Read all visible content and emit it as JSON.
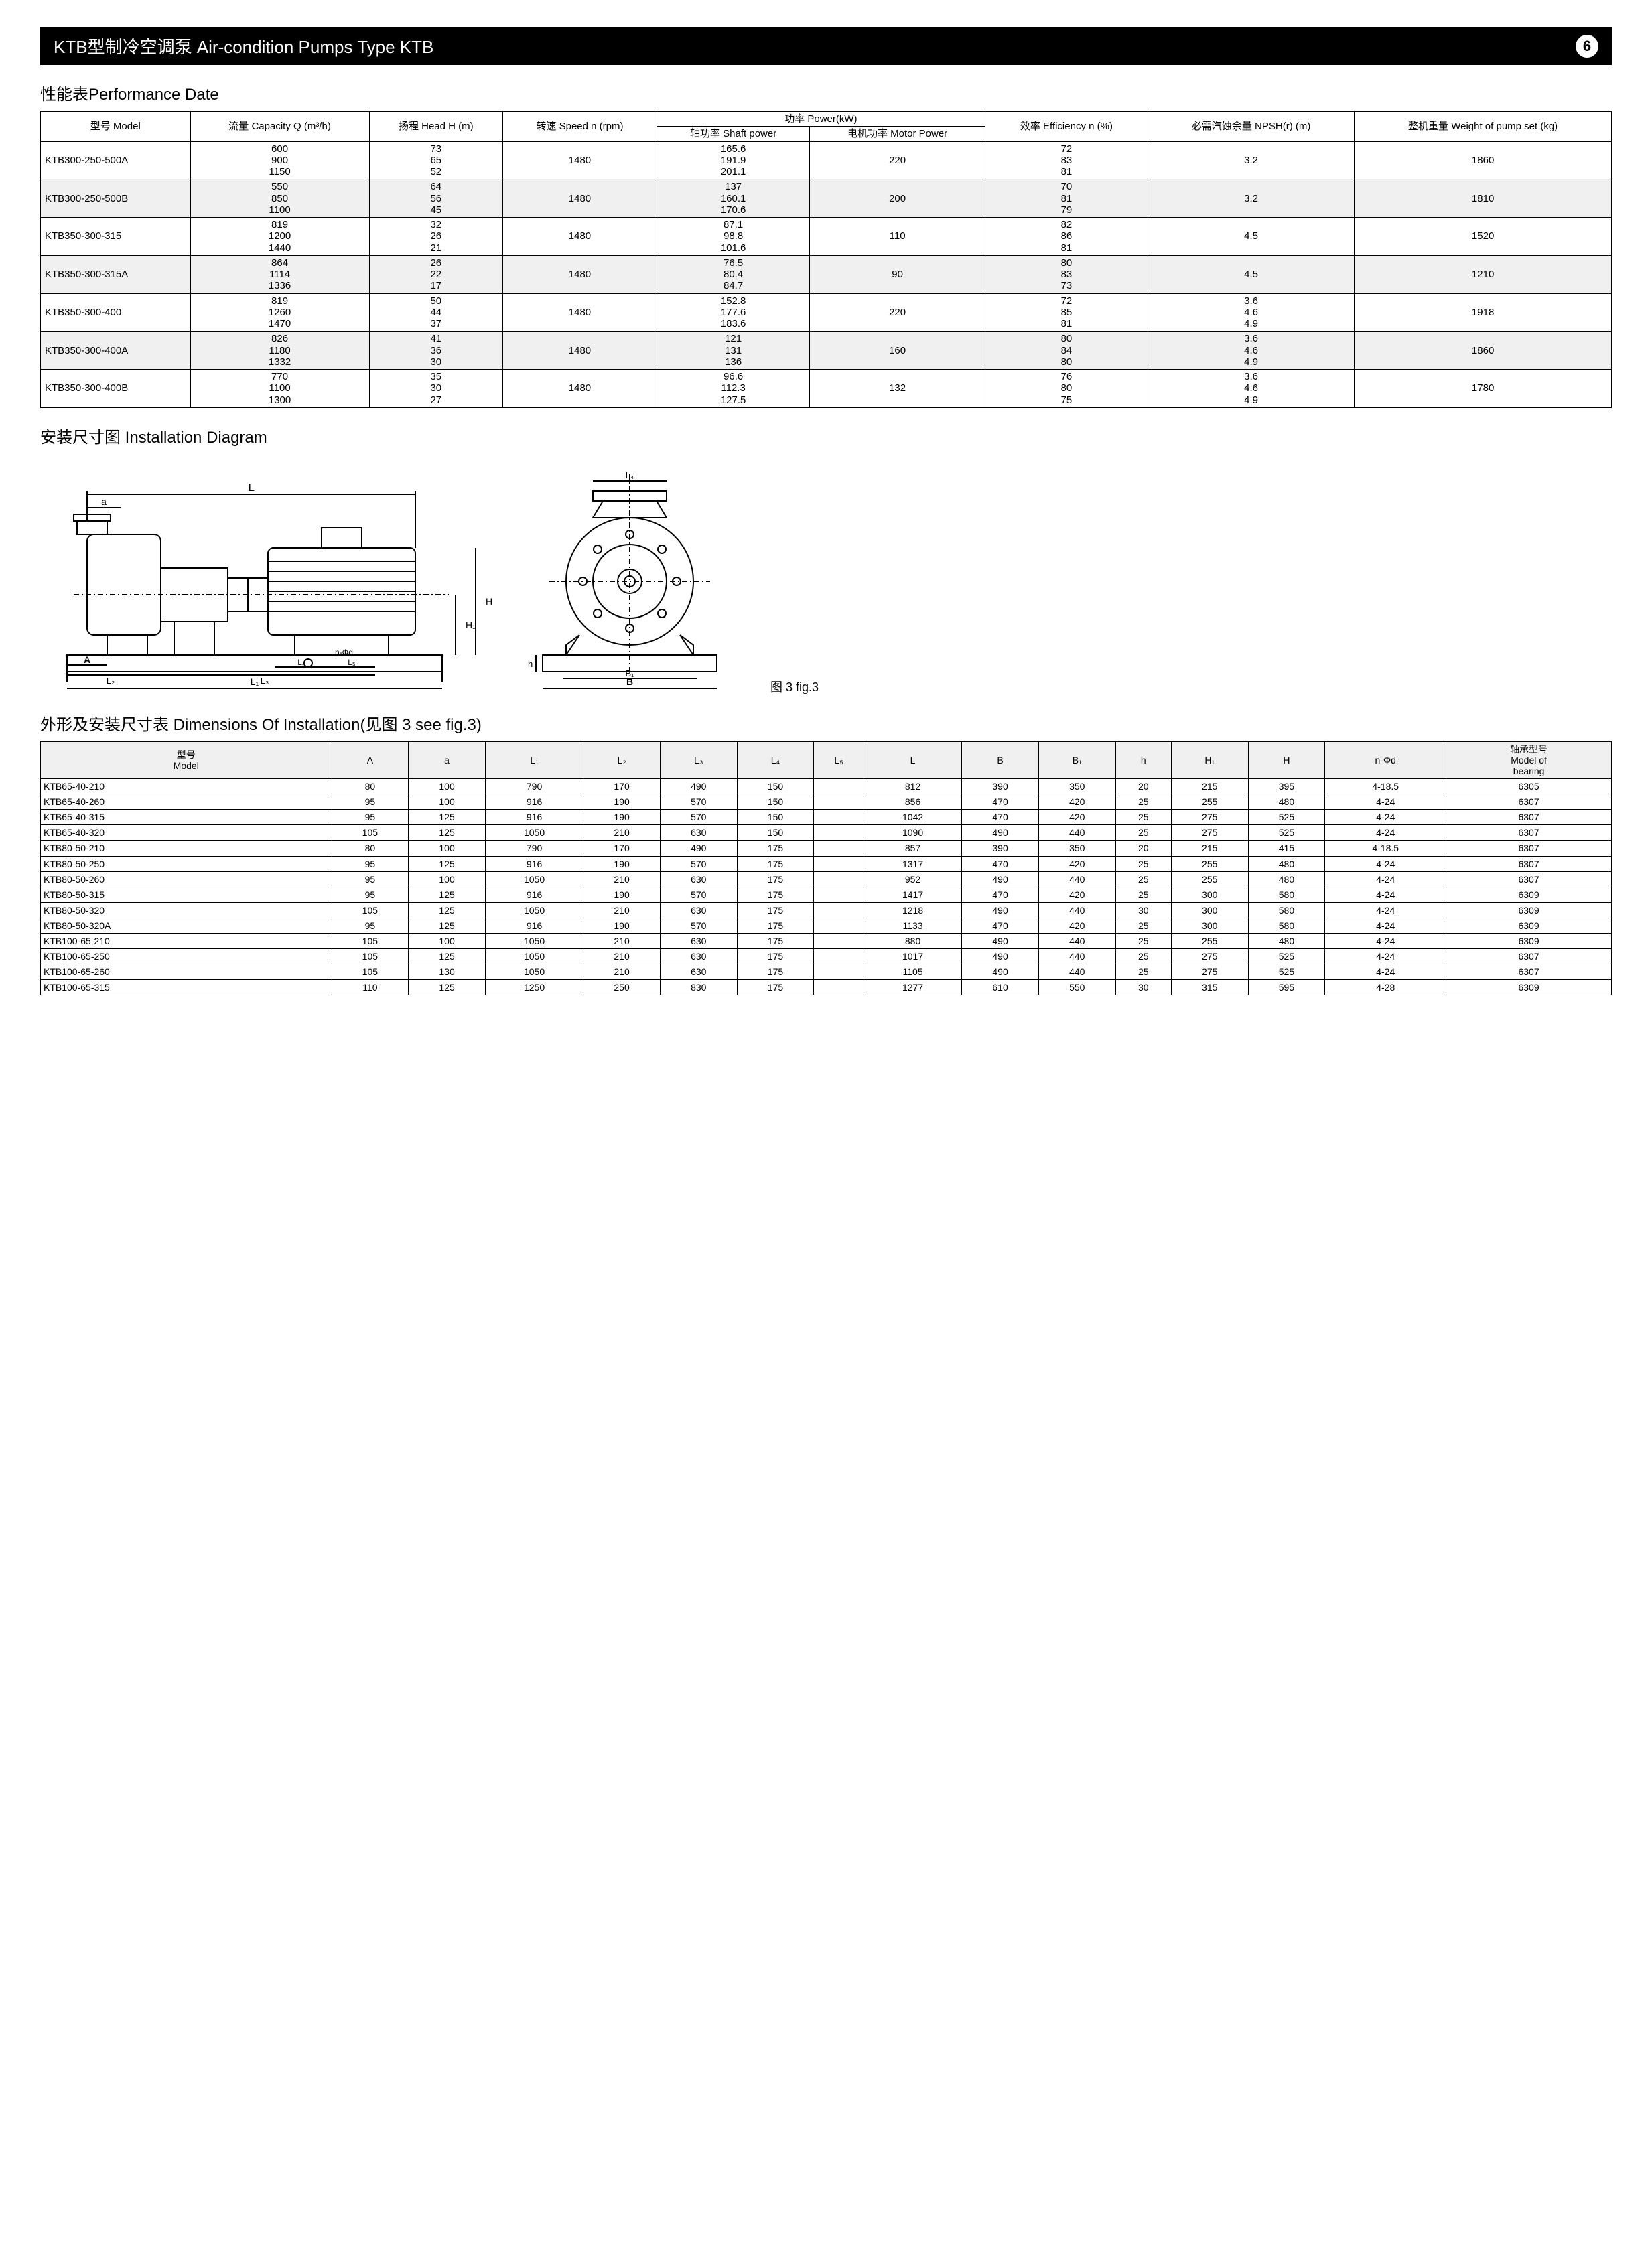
{
  "header": {
    "title": "KTB型制冷空调泵 Air-condition Pumps Type KTB",
    "page_number": "6"
  },
  "sections": {
    "performance_title": "性能表Performance Date",
    "diagram_title": "安装尺寸图 Installation Diagram",
    "dimensions_title": "外形及安装尺寸表 Dimensions Of Installation(见图 3 see fig.3)",
    "diagram_caption": "图 3 fig.3"
  },
  "perf_headers": {
    "model": "型号\nModel",
    "capacity": "流量\nCapacity\nQ\n(m³/h)",
    "head": "扬程\nHead\nH\n(m)",
    "speed": "转速\nSpeed\nn\n(rpm)",
    "power_group": "功率\nPower(kW)",
    "shaft_power": "轴功率\nShaft power",
    "motor_power": "电机功率\nMotor Power",
    "efficiency": "效率\nEfficiency\nn\n(%)",
    "npsh": "必需汽蚀余量\nNPSH(r)\n(m)",
    "weight": "整机重量\nWeight of pump set\n(kg)"
  },
  "perf_rows": [
    {
      "model": "KTB300-250-500A",
      "capacity": "600\n900\n1150",
      "head": "73\n65\n52",
      "speed": "1480",
      "shaft": "165.6\n191.9\n201.1",
      "motor": "220",
      "eff": "72\n83\n81",
      "npsh": "3.2",
      "weight": "1860",
      "shade": false
    },
    {
      "model": "KTB300-250-500B",
      "capacity": "550\n850\n1100",
      "head": "64\n56\n45",
      "speed": "1480",
      "shaft": "137\n160.1\n170.6",
      "motor": "200",
      "eff": "70\n81\n79",
      "npsh": "3.2",
      "weight": "1810",
      "shade": true
    },
    {
      "model": "KTB350-300-315",
      "capacity": "819\n1200\n1440",
      "head": "32\n26\n21",
      "speed": "1480",
      "shaft": "87.1\n98.8\n101.6",
      "motor": "110",
      "eff": "82\n86\n81",
      "npsh": "4.5",
      "weight": "1520",
      "shade": false
    },
    {
      "model": "KTB350-300-315A",
      "capacity": "864\n1114\n1336",
      "head": "26\n22\n17",
      "speed": "1480",
      "shaft": "76.5\n80.4\n84.7",
      "motor": "90",
      "eff": "80\n83\n73",
      "npsh": "4.5",
      "weight": "1210",
      "shade": true
    },
    {
      "model": "KTB350-300-400",
      "capacity": "819\n1260\n1470",
      "head": "50\n44\n37",
      "speed": "1480",
      "shaft": "152.8\n177.6\n183.6",
      "motor": "220",
      "eff": "72\n85\n81",
      "npsh": "3.6\n4.6\n4.9",
      "weight": "1918",
      "shade": false
    },
    {
      "model": "KTB350-300-400A",
      "capacity": "826\n1180\n1332",
      "head": "41\n36\n30",
      "speed": "1480",
      "shaft": "121\n131\n136",
      "motor": "160",
      "eff": "80\n84\n80",
      "npsh": "3.6\n4.6\n4.9",
      "weight": "1860",
      "shade": true
    },
    {
      "model": "KTB350-300-400B",
      "capacity": "770\n1100\n1300",
      "head": "35\n30\n27",
      "speed": "1480",
      "shaft": "96.6\n112.3\n127.5",
      "motor": "132",
      "eff": "76\n80\n75",
      "npsh": "3.6\n4.6\n4.9",
      "weight": "1780",
      "shade": false
    }
  ],
  "dim_headers": [
    "型号\nModel",
    "A",
    "a",
    "L₁",
    "L₂",
    "L₃",
    "L₄",
    "L₅",
    "L",
    "B",
    "B₁",
    "h",
    "H₁",
    "H",
    "n-Φd",
    "轴承型号\nModel of\nbearing"
  ],
  "dim_rows": [
    [
      "KTB65-40-210",
      "80",
      "100",
      "790",
      "170",
      "490",
      "150",
      "",
      "812",
      "390",
      "350",
      "20",
      "215",
      "395",
      "4-18.5",
      "6305"
    ],
    [
      "KTB65-40-260",
      "95",
      "100",
      "916",
      "190",
      "570",
      "150",
      "",
      "856",
      "470",
      "420",
      "25",
      "255",
      "480",
      "4-24",
      "6307"
    ],
    [
      "KTB65-40-315",
      "95",
      "125",
      "916",
      "190",
      "570",
      "150",
      "",
      "1042",
      "470",
      "420",
      "25",
      "275",
      "525",
      "4-24",
      "6307"
    ],
    [
      "KTB65-40-320",
      "105",
      "125",
      "1050",
      "210",
      "630",
      "150",
      "",
      "1090",
      "490",
      "440",
      "25",
      "275",
      "525",
      "4-24",
      "6307"
    ],
    [
      "KTB80-50-210",
      "80",
      "100",
      "790",
      "170",
      "490",
      "175",
      "",
      "857",
      "390",
      "350",
      "20",
      "215",
      "415",
      "4-18.5",
      "6307"
    ],
    [
      "KTB80-50-250",
      "95",
      "125",
      "916",
      "190",
      "570",
      "175",
      "",
      "1317",
      "470",
      "420",
      "25",
      "255",
      "480",
      "4-24",
      "6307"
    ],
    [
      "KTB80-50-260",
      "95",
      "100",
      "1050",
      "210",
      "630",
      "175",
      "",
      "952",
      "490",
      "440",
      "25",
      "255",
      "480",
      "4-24",
      "6307"
    ],
    [
      "KTB80-50-315",
      "95",
      "125",
      "916",
      "190",
      "570",
      "175",
      "",
      "1417",
      "470",
      "420",
      "25",
      "300",
      "580",
      "4-24",
      "6309"
    ],
    [
      "KTB80-50-320",
      "105",
      "125",
      "1050",
      "210",
      "630",
      "175",
      "",
      "1218",
      "490",
      "440",
      "30",
      "300",
      "580",
      "4-24",
      "6309"
    ],
    [
      "KTB80-50-320A",
      "95",
      "125",
      "916",
      "190",
      "570",
      "175",
      "",
      "1133",
      "470",
      "420",
      "25",
      "300",
      "580",
      "4-24",
      "6309"
    ],
    [
      "KTB100-65-210",
      "105",
      "100",
      "1050",
      "210",
      "630",
      "175",
      "",
      "880",
      "490",
      "440",
      "25",
      "255",
      "480",
      "4-24",
      "6309"
    ],
    [
      "KTB100-65-250",
      "105",
      "125",
      "1050",
      "210",
      "630",
      "175",
      "",
      "1017",
      "490",
      "440",
      "25",
      "275",
      "525",
      "4-24",
      "6307"
    ],
    [
      "KTB100-65-260",
      "105",
      "130",
      "1050",
      "210",
      "630",
      "175",
      "",
      "1105",
      "490",
      "440",
      "25",
      "275",
      "525",
      "4-24",
      "6307"
    ],
    [
      "KTB100-65-315",
      "110",
      "125",
      "1250",
      "250",
      "830",
      "175",
      "",
      "1277",
      "610",
      "550",
      "30",
      "315",
      "595",
      "4-28",
      "6309"
    ]
  ],
  "diagram_labels": {
    "L": "L",
    "a": "a",
    "A": "A",
    "L1": "L₁",
    "L2": "L₂",
    "L3": "L₃",
    "L4": "L₄",
    "L5": "L₅",
    "nphid": "n-Φd",
    "H": "H",
    "H1": "H₁",
    "h": "h",
    "B": "B",
    "B1": "B₁"
  },
  "colors": {
    "bar_bg": "#000000",
    "bar_fg": "#ffffff",
    "shade": "#f0f0f0",
    "line": "#000000"
  }
}
